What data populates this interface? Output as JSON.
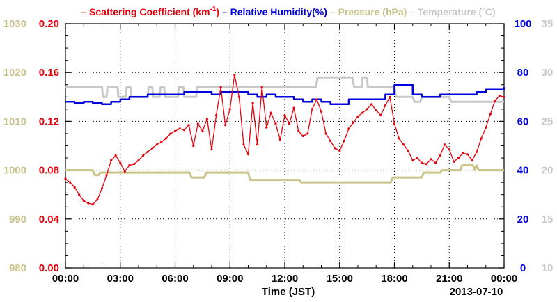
{
  "chart_data": {
    "type": "line",
    "legend": [
      {
        "prefix": "– ",
        "text": "Scattering Coefficient (km",
        "sup": "-1",
        "suffix": ")",
        "color": "#e8000b"
      },
      {
        "prefix": " – ",
        "text": "Relative Humidity(%)",
        "color": "#0000dd"
      },
      {
        "prefix": " – ",
        "text": "Pressure (hPa)",
        "color": "#c9c38a"
      },
      {
        "prefix": " – ",
        "text": "Temperature (˚C)",
        "color": "#c8c8c8"
      }
    ],
    "xlabel": "Time (JST)",
    "date_label": "2013-07-10",
    "x_ticks": [
      "00:00",
      "03:00",
      "06:00",
      "09:00",
      "12:00",
      "15:00",
      "18:00",
      "21:00",
      "00:00"
    ],
    "xlim_hours": [
      0,
      24
    ],
    "grid": true,
    "axes": {
      "scattering": {
        "ticks": [
          "0.00",
          "0.04",
          "0.08",
          "0.12",
          "0.16",
          "0.20"
        ],
        "range": [
          0,
          0.2
        ],
        "color": "#e8000b"
      },
      "humidity": {
        "ticks": [
          "0",
          "20",
          "40",
          "60",
          "80",
          "100"
        ],
        "range": [
          0,
          100
        ],
        "color": "#0000dd"
      },
      "pressure": {
        "ticks": [
          "980",
          "990",
          "1000",
          "1010",
          "1020",
          "1030"
        ],
        "range": [
          980,
          1030
        ],
        "color": "#c9c38a"
      },
      "temperature": {
        "ticks": [
          "10",
          "15",
          "20",
          "25",
          "30",
          "35"
        ],
        "range": [
          10,
          35
        ],
        "color": "#c8c8c8"
      }
    },
    "series": [
      {
        "name": "Scattering Coefficient (km-1)",
        "axis": "scattering",
        "color": "#e8000b",
        "x": [
          0,
          0.25,
          0.5,
          0.75,
          1.0,
          1.25,
          1.5,
          1.75,
          2.0,
          2.25,
          2.5,
          2.75,
          3.0,
          3.25,
          3.5,
          3.75,
          4.0,
          4.25,
          4.5,
          4.75,
          5.0,
          5.25,
          5.5,
          5.75,
          6.0,
          6.25,
          6.5,
          6.75,
          7.0,
          7.25,
          7.5,
          7.75,
          8.0,
          8.25,
          8.5,
          8.75,
          9.0,
          9.25,
          9.5,
          9.75,
          10.0,
          10.25,
          10.5,
          10.75,
          11.0,
          11.25,
          11.5,
          11.75,
          12.0,
          12.25,
          12.5,
          12.75,
          13.0,
          13.25,
          13.5,
          13.75,
          14.0,
          14.25,
          14.5,
          14.75,
          15.0,
          15.25,
          15.5,
          15.75,
          16.0,
          16.25,
          16.5,
          16.75,
          17.0,
          17.25,
          17.5,
          17.75,
          18.0,
          18.25,
          18.5,
          18.75,
          19.0,
          19.25,
          19.5,
          19.75,
          20.0,
          20.25,
          20.5,
          20.75,
          21.0,
          21.25,
          21.5,
          21.75,
          22.0,
          22.25,
          22.5,
          22.75,
          23.0,
          23.25,
          23.5,
          23.75,
          24.0
        ],
        "values": [
          0.073,
          0.07,
          0.066,
          0.06,
          0.055,
          0.053,
          0.052,
          0.056,
          0.065,
          0.076,
          0.088,
          0.092,
          0.086,
          0.079,
          0.084,
          0.085,
          0.088,
          0.092,
          0.095,
          0.098,
          0.101,
          0.103,
          0.106,
          0.11,
          0.112,
          0.114,
          0.113,
          0.117,
          0.1,
          0.118,
          0.112,
          0.122,
          0.097,
          0.125,
          0.148,
          0.117,
          0.13,
          0.158,
          0.14,
          0.101,
          0.093,
          0.135,
          0.101,
          0.148,
          0.115,
          0.127,
          0.118,
          0.105,
          0.125,
          0.118,
          0.131,
          0.112,
          0.108,
          0.11,
          0.13,
          0.138,
          0.128,
          0.11,
          0.104,
          0.098,
          0.096,
          0.104,
          0.114,
          0.119,
          0.124,
          0.127,
          0.13,
          0.134,
          0.129,
          0.125,
          0.133,
          0.14,
          0.118,
          0.106,
          0.101,
          0.096,
          0.088,
          0.09,
          0.086,
          0.085,
          0.089,
          0.086,
          0.092,
          0.101,
          0.097,
          0.087,
          0.09,
          0.094,
          0.093,
          0.088,
          0.095,
          0.106,
          0.115,
          0.126,
          0.137,
          0.141,
          0.14
        ]
      },
      {
        "name": "Relative Humidity(%)",
        "axis": "humidity",
        "color": "#0000dd",
        "x": [
          0,
          0.5,
          1.0,
          1.5,
          2.0,
          2.5,
          3.0,
          3.5,
          4.0,
          4.5,
          5.0,
          5.5,
          6.0,
          6.5,
          7.0,
          7.5,
          8.0,
          8.5,
          9.0,
          9.5,
          10.0,
          10.5,
          11.0,
          11.5,
          12.0,
          12.5,
          13.0,
          13.5,
          14.0,
          14.5,
          15.0,
          15.5,
          16.0,
          16.5,
          17.0,
          17.5,
          18.0,
          18.5,
          19.0,
          19.5,
          20.0,
          20.5,
          21.0,
          21.5,
          22.0,
          22.5,
          23.0,
          23.5,
          24.0
        ],
        "values": [
          68,
          67.5,
          68,
          67.5,
          67,
          68,
          69,
          70,
          70,
          71,
          71,
          71,
          71,
          72,
          72,
          72,
          71,
          72,
          72,
          72,
          71,
          70,
          71,
          70,
          70,
          69,
          68,
          69,
          68,
          67,
          67,
          69,
          69,
          69,
          69,
          71,
          75,
          75,
          71,
          70,
          70,
          71,
          71,
          71,
          71,
          72,
          73,
          73,
          74
        ]
      },
      {
        "name": "Pressure (hPa)",
        "axis": "pressure",
        "color": "#c9c38a",
        "x": [
          0,
          1.5,
          1.6,
          1.8,
          1.9,
          6.8,
          6.9,
          7.6,
          7.7,
          10.0,
          10.1,
          12.8,
          12.9,
          17.8,
          17.9,
          19.5,
          19.6,
          20.5,
          20.6,
          21.6,
          21.7,
          22.3,
          22.4,
          22.5,
          22.6,
          24.0
        ],
        "values": [
          1000,
          1000,
          999,
          999,
          999.5,
          999.5,
          998.5,
          998.5,
          999.5,
          999.5,
          998,
          998,
          997.5,
          997.5,
          998.5,
          998.5,
          999.5,
          999.5,
          1000,
          1000,
          1001,
          1001,
          1000,
          1001,
          1000,
          1000
        ]
      },
      {
        "name": "Temperature (˚C)",
        "axis": "temperature",
        "color": "#c8c8c8",
        "x": [
          0,
          2.0,
          2.05,
          2.25,
          2.3,
          2.85,
          2.9,
          3.3,
          3.35,
          3.55,
          3.6,
          4.5,
          4.55,
          4.75,
          4.8,
          5.15,
          5.2,
          5.4,
          5.45,
          6.15,
          6.2,
          6.45,
          6.5,
          7.15,
          7.2,
          7.45,
          7.5,
          13.7,
          13.8,
          15.7,
          15.8,
          16.0,
          16.05,
          16.2,
          16.25,
          16.5,
          16.55,
          17.0,
          17.1,
          18.0,
          18.1,
          19.0,
          19.1,
          19.4,
          19.5,
          21.0,
          21.1,
          24.0
        ],
        "values": [
          28.5,
          28.5,
          27.5,
          27.5,
          28.5,
          28.5,
          27.5,
          27.5,
          28.5,
          28.5,
          27.5,
          27.5,
          28.5,
          28.5,
          27.5,
          27.5,
          28.5,
          28.5,
          27.5,
          27.5,
          28.5,
          28.5,
          27.5,
          27.5,
          28.5,
          28.5,
          28.5,
          28.5,
          29.5,
          29.5,
          28.5,
          28.5,
          28.5,
          28.5,
          29.5,
          29.5,
          28.5,
          28.5,
          28.5,
          28.5,
          27.5,
          27.5,
          27.0,
          27.0,
          27.5,
          27.5,
          27.0,
          27.0
        ]
      }
    ]
  }
}
